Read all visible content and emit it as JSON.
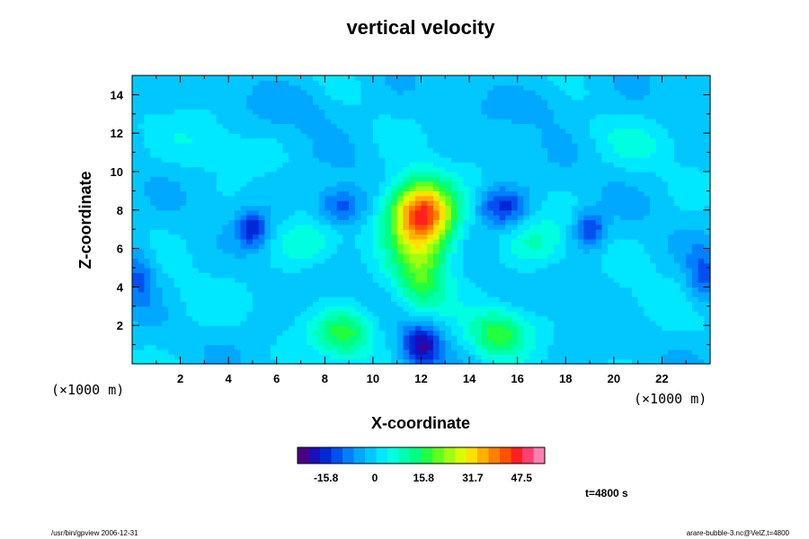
{
  "chart_data": {
    "type": "heatmap",
    "title": "vertical velocity",
    "xlabel": "X-coordinate",
    "ylabel": "Z-coordinate",
    "xunit": "(×1000 m)",
    "yunit": "(×1000 m)",
    "xlim": [
      0,
      24
    ],
    "ylim": [
      0,
      15
    ],
    "xticks": [
      2,
      4,
      6,
      8,
      10,
      12,
      14,
      16,
      18,
      20,
      22
    ],
    "yticks": [
      2,
      4,
      6,
      8,
      10,
      12,
      14
    ],
    "vmin": -25,
    "vmax": 55,
    "background_value": -1,
    "features": [
      {
        "x": 12.0,
        "z": 8.0,
        "value": 38,
        "sx": 0.95,
        "sz": 1.15
      },
      {
        "x": 12.0,
        "z": 6.3,
        "value": 18,
        "sx": 0.9,
        "sz": 1.6
      },
      {
        "x": 12.0,
        "z": 4.0,
        "value": 10,
        "sx": 0.7,
        "sz": 1.2
      },
      {
        "x": 12.0,
        "z": 1.0,
        "value": -20,
        "sx": 0.55,
        "sz": 0.8
      },
      {
        "x": 8.6,
        "z": 8.2,
        "value": -14,
        "sx": 0.7,
        "sz": 0.7
      },
      {
        "x": 15.4,
        "z": 8.2,
        "value": -14,
        "sx": 0.7,
        "sz": 0.7
      },
      {
        "x": 5.0,
        "z": 7.0,
        "value": -15,
        "sx": 0.45,
        "sz": 0.65
      },
      {
        "x": 19.0,
        "z": 7.0,
        "value": -15,
        "sx": 0.45,
        "sz": 0.65
      },
      {
        "x": 8.8,
        "z": 1.6,
        "value": 17,
        "sx": 0.9,
        "sz": 0.9
      },
      {
        "x": 15.2,
        "z": 1.6,
        "value": 17,
        "sx": 0.9,
        "sz": 0.9
      },
      {
        "x": 7.2,
        "z": 6.3,
        "value": 9,
        "sx": 0.9,
        "sz": 0.9
      },
      {
        "x": 16.8,
        "z": 6.3,
        "value": 9,
        "sx": 0.9,
        "sz": 0.9
      },
      {
        "x": 0.3,
        "z": 4.5,
        "value": -10,
        "sx": 0.45,
        "sz": 1.1
      },
      {
        "x": 23.7,
        "z": 4.5,
        "value": -10,
        "sx": 0.45,
        "sz": 1.1
      },
      {
        "x": 3.0,
        "z": 11.5,
        "value": 4,
        "sx": 1.3,
        "sz": 0.9
      },
      {
        "x": 21.0,
        "z": 11.5,
        "value": 4,
        "sx": 1.3,
        "sz": 0.9
      },
      {
        "x": 7.0,
        "z": 13.5,
        "value": -4,
        "sx": 1.2,
        "sz": 0.8
      },
      {
        "x": 17.0,
        "z": 13.5,
        "value": -4,
        "sx": 1.2,
        "sz": 0.8
      },
      {
        "x": 2.5,
        "z": 3.0,
        "value": 3,
        "sx": 1.0,
        "sz": 1.0
      },
      {
        "x": 21.5,
        "z": 3.0,
        "value": 3,
        "sx": 1.0,
        "sz": 1.0
      }
    ],
    "colorbar": {
      "ticks": [
        -15.8,
        0,
        15.8,
        31.7,
        47.5
      ],
      "tick_labels": [
        "-15.8",
        "0",
        "15.8",
        "31.7",
        "47.5"
      ],
      "colors": [
        "#4b0082",
        "#1a0fb8",
        "#0028d8",
        "#0050f0",
        "#0080ff",
        "#00a8ff",
        "#00c8ff",
        "#00e8ff",
        "#00ffe0",
        "#00ffb0",
        "#00ff80",
        "#20ff40",
        "#60ff20",
        "#a0ff10",
        "#d8ff00",
        "#ffe000",
        "#ffb000",
        "#ff8000",
        "#ff5000",
        "#ff2020",
        "#ff4070",
        "#ff80b0"
      ]
    },
    "time_label": "t=4800 s"
  },
  "footer": {
    "left": "/usr/bin/gpview 2006-12-31",
    "right": "arare-bubble-3.nc@VelZ,t=4800"
  }
}
